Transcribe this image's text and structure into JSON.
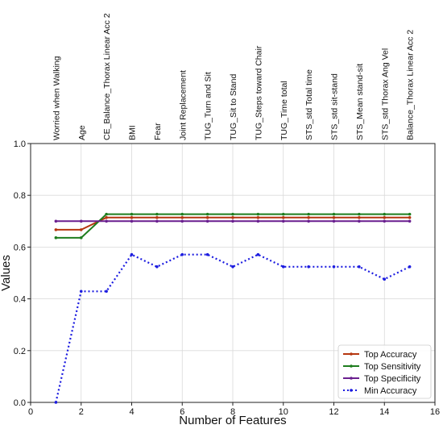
{
  "chart_data": {
    "type": "line",
    "xlabel": "Number of Features",
    "ylabel": "Values",
    "xlim": [
      0,
      16
    ],
    "ylim": [
      0.0,
      1.0
    ],
    "xticks": [
      0,
      2,
      4,
      6,
      8,
      10,
      12,
      14,
      16
    ],
    "xtick_labels": [
      "0",
      "2",
      "4",
      "6",
      "8",
      "10",
      "12",
      "14",
      "16"
    ],
    "yticks": [
      0.0,
      0.2,
      0.4,
      0.6,
      0.8,
      1.0
    ],
    "ytick_labels": [
      "0.0",
      "0.2",
      "0.4",
      "0.6",
      "0.8",
      "1.0"
    ],
    "grid": true,
    "legend_position": "bottom-right",
    "feature_labels": [
      "Worried when Walking",
      "Age",
      "CE_Balance_Thorax Linear Acc 2",
      "BMI",
      "Fear",
      "Joint Replacement",
      "TUG_Turn and Sit",
      "TUG_Sit to Stand",
      "TUG_Steps toward Chair",
      "TUG_Time total",
      "STS_std Total time",
      "STS_std sit-stand",
      "STS_Mean stand-sit",
      "STS_std Thorax Ang Vel",
      "Balance_Thorax Linear Acc 2"
    ],
    "x": [
      1,
      2,
      3,
      4,
      5,
      6,
      7,
      8,
      9,
      10,
      11,
      12,
      13,
      14,
      15
    ],
    "series": [
      {
        "name": "Top Accuracy",
        "color": "#b5360f",
        "style": "solid",
        "values": [
          0.667,
          0.667,
          0.714,
          0.714,
          0.714,
          0.714,
          0.714,
          0.714,
          0.714,
          0.714,
          0.714,
          0.714,
          0.714,
          0.714,
          0.714
        ]
      },
      {
        "name": "Top Sensitivity",
        "color": "#1e7d1e",
        "style": "solid",
        "values": [
          0.636,
          0.636,
          0.727,
          0.727,
          0.727,
          0.727,
          0.727,
          0.727,
          0.727,
          0.727,
          0.727,
          0.727,
          0.727,
          0.727,
          0.727
        ]
      },
      {
        "name": "Top Specificity",
        "color": "#6a1f8f",
        "style": "solid",
        "values": [
          0.7,
          0.7,
          0.7,
          0.7,
          0.7,
          0.7,
          0.7,
          0.7,
          0.7,
          0.7,
          0.7,
          0.7,
          0.7,
          0.7,
          0.7
        ]
      },
      {
        "name": "Min Accuracy",
        "color": "#1c1ce0",
        "style": "dotted",
        "values": [
          0.0,
          0.429,
          0.429,
          0.571,
          0.524,
          0.571,
          0.571,
          0.524,
          0.571,
          0.524,
          0.524,
          0.524,
          0.524,
          0.476,
          0.524
        ]
      }
    ]
  }
}
